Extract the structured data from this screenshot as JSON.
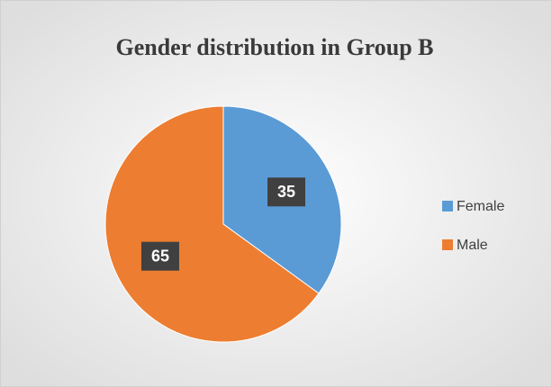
{
  "chart_data": {
    "type": "pie",
    "title": "Gender distribution in Group B",
    "categories": [
      "Female",
      "Male"
    ],
    "values": [
      35,
      65
    ],
    "colors": [
      "#5b9bd5",
      "#ed7d31"
    ],
    "legend": "right"
  }
}
